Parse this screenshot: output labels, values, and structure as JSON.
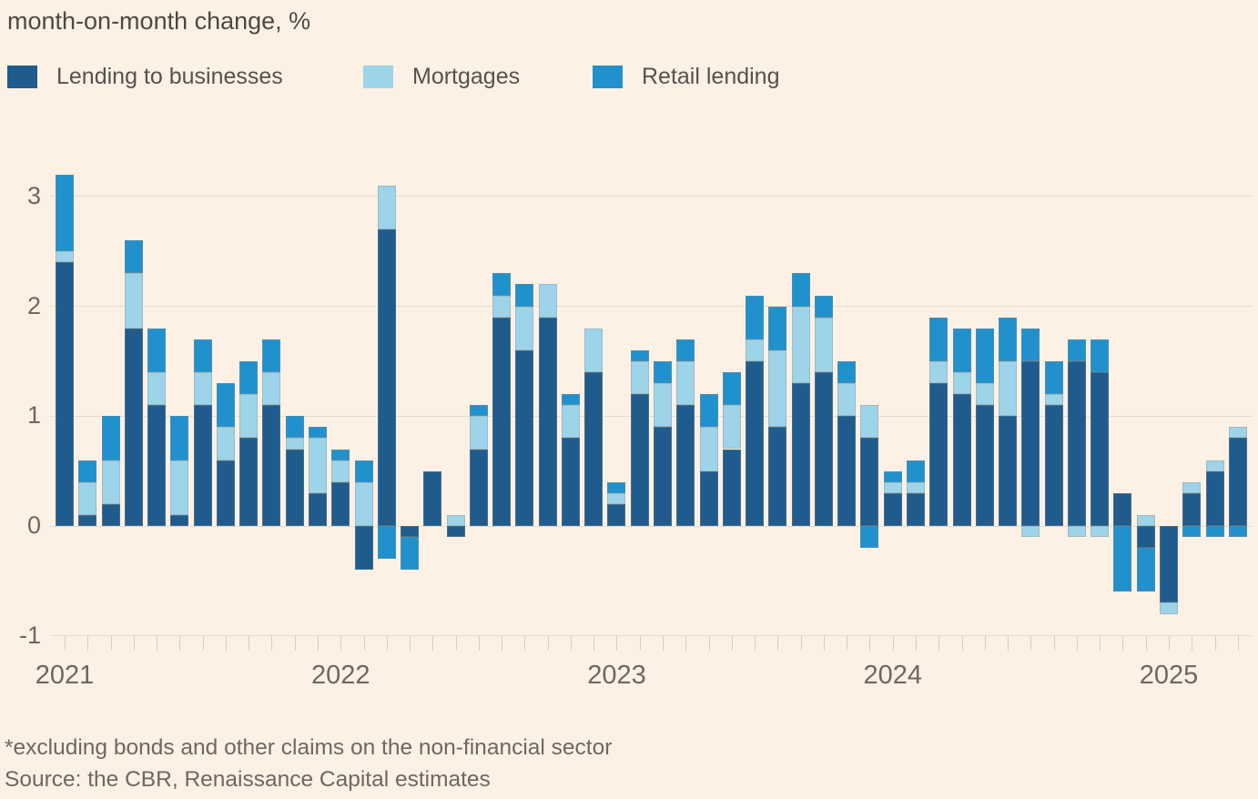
{
  "title": "month-on-month change, %",
  "legend": [
    {
      "label": "Lending to businesses",
      "color": "#1f5c8d"
    },
    {
      "label": "Mortgages",
      "color": "#9dd4ea"
    },
    {
      "label": "Retail lending",
      "color": "#2191cd"
    }
  ],
  "colors": {
    "background": "#fdf1e5",
    "businesses": "#1f5c8d",
    "mortgages": "#9dd4ea",
    "retail": "#2191cd",
    "gridline": "#e7dbcd",
    "axis_text": "#6e6762"
  },
  "footnote": "*excluding bonds and other claims on the non-financial sector",
  "source": "Source: the CBR, Renaissance Capital estimates",
  "chart_data": {
    "type": "bar",
    "stacked": true,
    "title": "month-on-month change, %",
    "xlabel": "",
    "ylabel": "month-on-month change, %",
    "ylim": [
      -1,
      3.3
    ],
    "yticks": [
      3,
      2,
      1,
      0,
      -1
    ],
    "grid": true,
    "legend_position": "top",
    "x_year_labels": [
      "2021",
      "2022",
      "2023",
      "2024",
      "2025"
    ],
    "categories": [
      "2021-01",
      "2021-02",
      "2021-03",
      "2021-04",
      "2021-05",
      "2021-06",
      "2021-07",
      "2021-08",
      "2021-09",
      "2021-10",
      "2021-11",
      "2021-12",
      "2022-01",
      "2022-02",
      "2022-03",
      "2022-04",
      "2022-05",
      "2022-06",
      "2022-07",
      "2022-08",
      "2022-09",
      "2022-10",
      "2022-11",
      "2022-12",
      "2023-01",
      "2023-02",
      "2023-03",
      "2023-04",
      "2023-05",
      "2023-06",
      "2023-07",
      "2023-08",
      "2023-09",
      "2023-10",
      "2023-11",
      "2023-12",
      "2024-01",
      "2024-02",
      "2024-03",
      "2024-04",
      "2024-05",
      "2024-06",
      "2024-07",
      "2024-08",
      "2024-09",
      "2024-10",
      "2024-11",
      "2024-12",
      "2025-01",
      "2025-02",
      "2025-03",
      "2025-04"
    ],
    "series": [
      {
        "name": "Lending to businesses",
        "color": "#1f5c8d",
        "values": [
          2.4,
          0.1,
          0.2,
          1.8,
          1.1,
          0.1,
          1.1,
          0.6,
          0.8,
          1.1,
          0.7,
          0.3,
          0.4,
          -0.4,
          2.7,
          -0.1,
          0.5,
          -0.1,
          0.7,
          1.9,
          1.6,
          1.9,
          0.8,
          1.4,
          0.2,
          1.2,
          0.9,
          1.1,
          0.5,
          0.7,
          1.5,
          0.9,
          1.3,
          1.4,
          1.0,
          0.8,
          0.3,
          0.3,
          1.3,
          1.2,
          1.1,
          1.0,
          1.5,
          1.1,
          1.5,
          1.4,
          0.3,
          -0.2,
          -0.7,
          0.3,
          0.5,
          0.8
        ]
      },
      {
        "name": "Mortgages",
        "color": "#9dd4ea",
        "values": [
          0.1,
          0.3,
          0.4,
          0.5,
          0.3,
          0.5,
          0.3,
          0.3,
          0.4,
          0.3,
          0.1,
          0.5,
          0.2,
          0.4,
          0.4,
          0.0,
          0.0,
          0.1,
          0.3,
          0.2,
          0.4,
          0.3,
          0.3,
          0.4,
          0.1,
          0.3,
          0.4,
          0.4,
          0.4,
          0.4,
          0.2,
          0.7,
          0.7,
          0.5,
          0.3,
          0.3,
          0.1,
          0.1,
          0.2,
          0.2,
          0.2,
          0.5,
          -0.1,
          0.1,
          -0.1,
          -0.1,
          0.0,
          0.1,
          -0.1,
          0.1,
          0.1,
          0.1
        ]
      },
      {
        "name": "Retail lending",
        "color": "#2191cd",
        "values": [
          0.7,
          0.2,
          0.4,
          0.3,
          0.4,
          0.4,
          0.3,
          0.4,
          0.3,
          0.3,
          0.2,
          0.1,
          0.1,
          0.2,
          -0.3,
          -0.3,
          0.0,
          0.0,
          0.1,
          0.2,
          0.2,
          0.0,
          0.1,
          0.0,
          0.1,
          0.1,
          0.2,
          0.2,
          0.3,
          0.3,
          0.4,
          0.4,
          0.3,
          0.2,
          0.2,
          -0.2,
          0.1,
          0.2,
          0.4,
          0.4,
          0.5,
          0.4,
          0.3,
          0.3,
          0.2,
          0.3,
          -0.6,
          -0.4,
          0.0,
          -0.1,
          -0.1,
          -0.1
        ]
      }
    ]
  }
}
